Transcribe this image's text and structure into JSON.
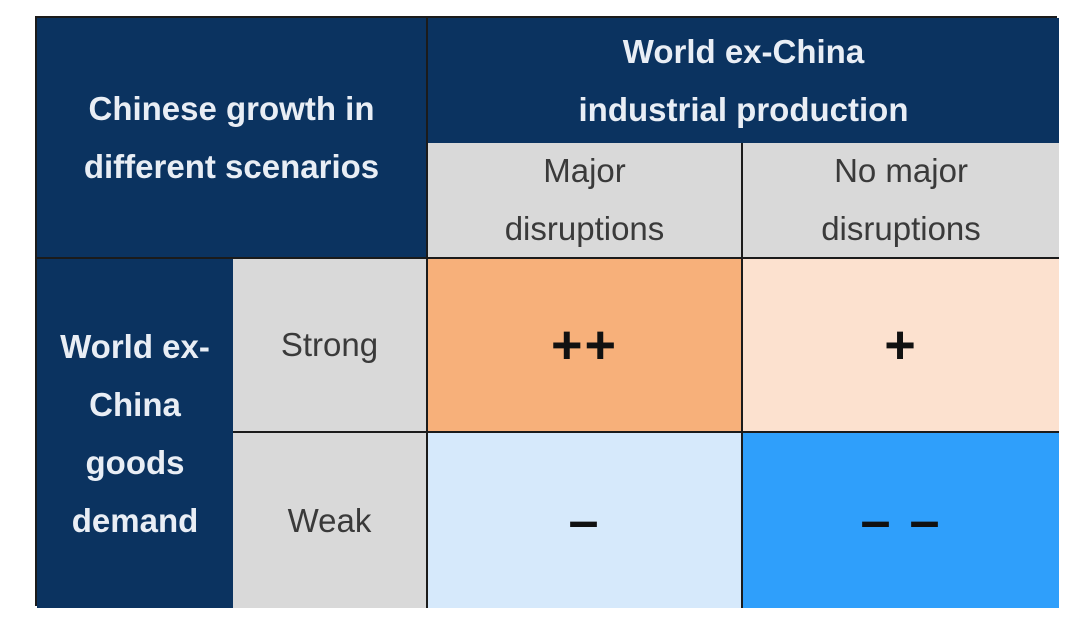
{
  "table": {
    "corner_label": "Chinese growth in\ndifferent scenarios",
    "column_group_label": "World ex-China\nindustrial production",
    "columns": [
      "Major\ndisruptions",
      "No major\ndisruptions"
    ],
    "row_group_label": "World ex-\nChina\ngoods\ndemand",
    "rows": [
      {
        "label": "Strong",
        "values": [
          "++",
          "+"
        ]
      },
      {
        "label": "Weak",
        "values": [
          "–",
          "– –"
        ]
      }
    ]
  },
  "colors": {
    "header_navy": "#0b3360",
    "header_grey": "#d9d9d9",
    "strong_major": "#f7b07a",
    "strong_nomajor": "#fce1cf",
    "weak_major": "#d6e9fb",
    "weak_nomajor": "#2f9ffb"
  }
}
